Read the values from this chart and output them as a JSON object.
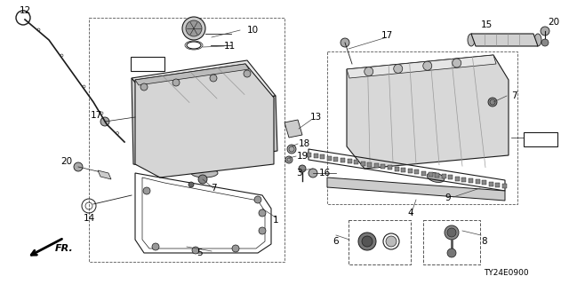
{
  "bg_color": "#ffffff",
  "line_color": "#1a1a1a",
  "diagram_code": "TY24E0900",
  "fig_w": 6.4,
  "fig_h": 3.2,
  "dpi": 100
}
